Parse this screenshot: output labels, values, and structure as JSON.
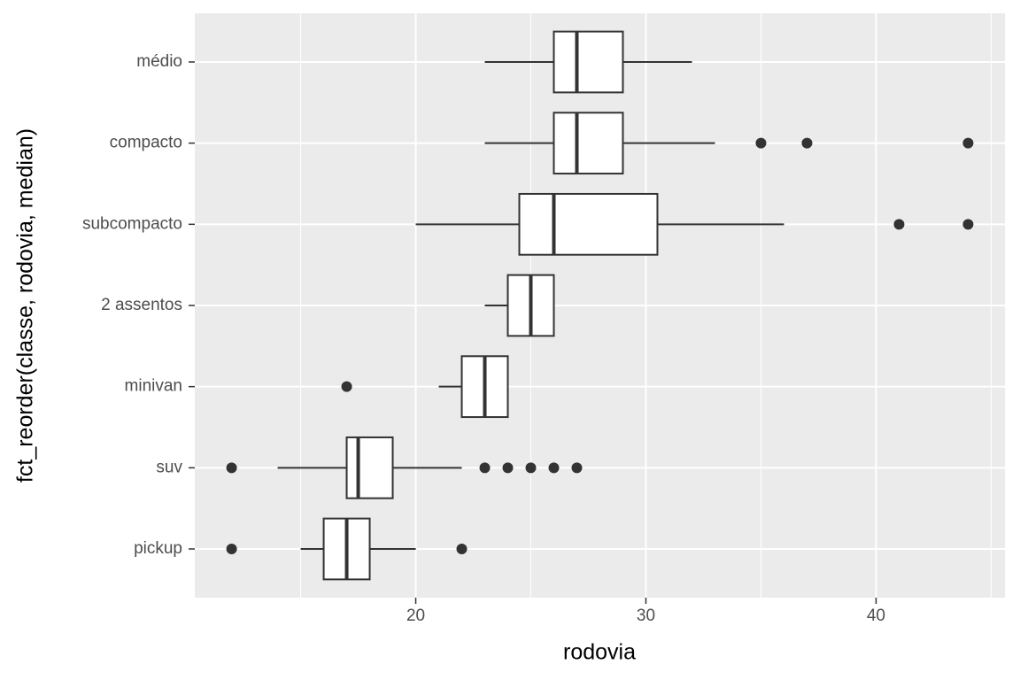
{
  "chart_data": {
    "type": "boxplot",
    "orientation": "horizontal",
    "x_label": "rodovia",
    "y_label": "fct_reorder(classe, rodovia, median)",
    "categories": [
      "médio",
      "compacto",
      "subcompacto",
      "2 assentos",
      "minivan",
      "suv",
      "pickup"
    ],
    "boxes": [
      {
        "low": 23,
        "q1": 26,
        "median": 27,
        "q3": 29,
        "high": 32,
        "outliers": []
      },
      {
        "low": 23,
        "q1": 26,
        "median": 27,
        "q3": 29,
        "high": 33,
        "outliers": [
          35,
          37,
          44
        ]
      },
      {
        "low": 20,
        "q1": 24.5,
        "median": 26,
        "q3": 30.5,
        "high": 36,
        "outliers": [
          41,
          44
        ]
      },
      {
        "low": 23,
        "q1": 24,
        "median": 25,
        "q3": 26,
        "high": 26,
        "outliers": []
      },
      {
        "low": 21,
        "q1": 22,
        "median": 23,
        "q3": 24,
        "high": 24,
        "outliers": [
          17
        ]
      },
      {
        "low": 14,
        "q1": 17,
        "median": 17.5,
        "q3": 19,
        "high": 22,
        "outliers": [
          12,
          23,
          24,
          25,
          26,
          27
        ]
      },
      {
        "low": 15,
        "q1": 16,
        "median": 17,
        "q3": 18,
        "high": 20,
        "outliers": [
          12,
          22
        ]
      }
    ],
    "xlim": [
      10.4,
      45.6
    ],
    "xticks": [
      20,
      30,
      40
    ],
    "xminorticks": [
      15,
      25,
      35,
      45
    ],
    "grid": true,
    "box_fill": "#ffffff",
    "line_color": "#333333",
    "panel_color": "#ebebeb"
  }
}
